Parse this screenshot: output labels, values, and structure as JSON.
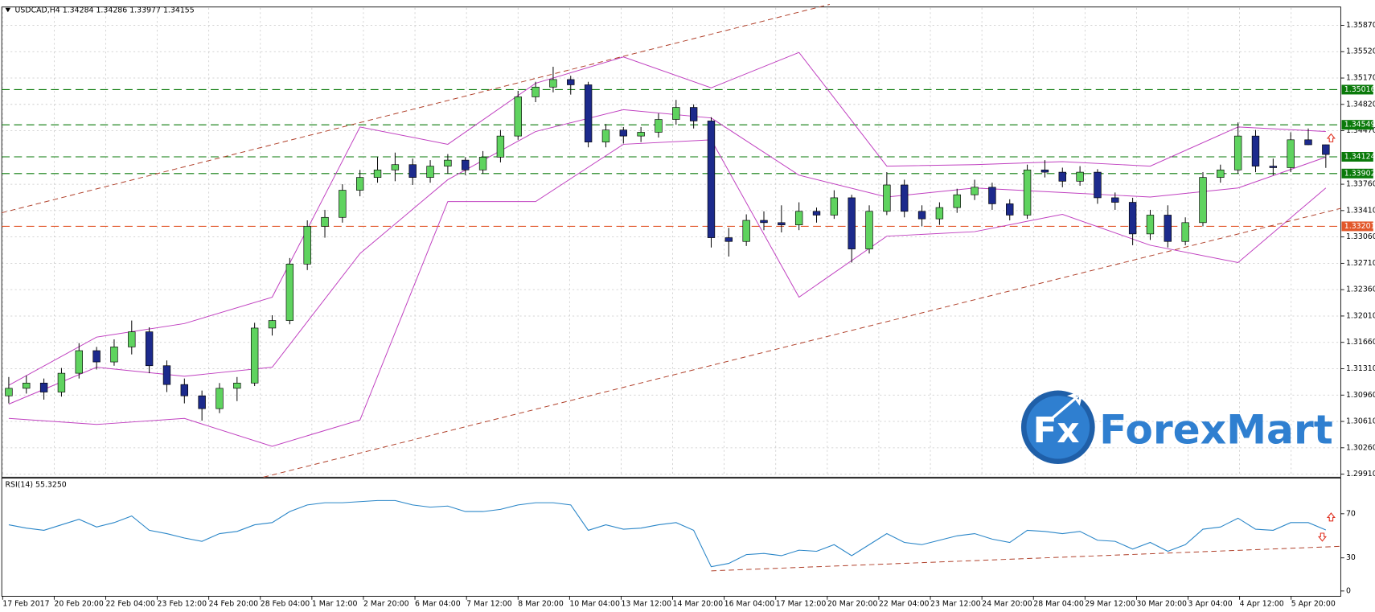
{
  "chart_data": [
    {
      "type": "candlestick",
      "title": "USDCAD,H4  1.34284 1.34286 1.33977 1.34155",
      "ylim": [
        1.2987,
        1.3609
      ],
      "yticks": [
        {
          "value": 1.3587,
          "label": "1.35870"
        },
        {
          "value": 1.3552,
          "label": "1.35520"
        },
        {
          "value": 1.3517,
          "label": "1.35170"
        },
        {
          "value": 1.3482,
          "label": "1.34820"
        },
        {
          "value": 1.3447,
          "label": "1.34470"
        },
        {
          "value": 1.3376,
          "label": "1.33760"
        },
        {
          "value": 1.3341,
          "label": "1.33410"
        },
        {
          "value": 1.3306,
          "label": "1.33060"
        },
        {
          "value": 1.3271,
          "label": "1.32710"
        },
        {
          "value": 1.3236,
          "label": "1.32360"
        },
        {
          "value": 1.3201,
          "label": "1.32010"
        },
        {
          "value": 1.3166,
          "label": "1.31660"
        },
        {
          "value": 1.3131,
          "label": "1.31310"
        },
        {
          "value": 1.3096,
          "label": "1.30960"
        },
        {
          "value": 1.3061,
          "label": "1.30610"
        },
        {
          "value": 1.3026,
          "label": "1.30260"
        },
        {
          "value": 1.2991,
          "label": "1.29910"
        }
      ],
      "grid": true,
      "up_color": "#5fd35f",
      "down_color": "#1c2a8c",
      "candles": [
        [
          1.3095,
          1.312,
          1.3085,
          1.3105
        ],
        [
          1.3105,
          1.3122,
          1.3098,
          1.3112
        ],
        [
          1.3112,
          1.3118,
          1.309,
          1.31
        ],
        [
          1.31,
          1.3132,
          1.3094,
          1.3125
        ],
        [
          1.3125,
          1.3165,
          1.3118,
          1.3155
        ],
        [
          1.3155,
          1.316,
          1.313,
          1.314
        ],
        [
          1.314,
          1.317,
          1.3135,
          1.316
        ],
        [
          1.316,
          1.3195,
          1.315,
          1.318
        ],
        [
          1.318,
          1.3186,
          1.3125,
          1.3135
        ],
        [
          1.3135,
          1.3142,
          1.31,
          1.311
        ],
        [
          1.311,
          1.3118,
          1.3085,
          1.3095
        ],
        [
          1.3095,
          1.3102,
          1.3062,
          1.3078
        ],
        [
          1.3078,
          1.3112,
          1.3072,
          1.3105
        ],
        [
          1.3105,
          1.312,
          1.3088,
          1.3112
        ],
        [
          1.3112,
          1.3192,
          1.3108,
          1.3185
        ],
        [
          1.3185,
          1.3202,
          1.3175,
          1.3195
        ],
        [
          1.3195,
          1.3278,
          1.319,
          1.327
        ],
        [
          1.327,
          1.3328,
          1.3262,
          1.332
        ],
        [
          1.332,
          1.3342,
          1.3305,
          1.3332
        ],
        [
          1.3332,
          1.3376,
          1.3325,
          1.3368
        ],
        [
          1.3368,
          1.3395,
          1.336,
          1.3385
        ],
        [
          1.3385,
          1.3412,
          1.3378,
          1.3395
        ],
        [
          1.3395,
          1.3418,
          1.338,
          1.3402
        ],
        [
          1.3402,
          1.341,
          1.3375,
          1.3385
        ],
        [
          1.3385,
          1.3408,
          1.3378,
          1.34
        ],
        [
          1.34,
          1.3416,
          1.339,
          1.3408
        ],
        [
          1.3408,
          1.3412,
          1.3388,
          1.3395
        ],
        [
          1.3395,
          1.342,
          1.339,
          1.3412
        ],
        [
          1.3412,
          1.3448,
          1.3405,
          1.344
        ],
        [
          1.344,
          1.35,
          1.3435,
          1.3492
        ],
        [
          1.3492,
          1.3512,
          1.3485,
          1.3505
        ],
        [
          1.3505,
          1.3532,
          1.3498,
          1.3515
        ],
        [
          1.3515,
          1.352,
          1.3495,
          1.3508
        ],
        [
          1.3508,
          1.3512,
          1.3425,
          1.3432
        ],
        [
          1.3432,
          1.3456,
          1.3425,
          1.3448
        ],
        [
          1.3448,
          1.3452,
          1.343,
          1.344
        ],
        [
          1.344,
          1.3452,
          1.3432,
          1.3445
        ],
        [
          1.3445,
          1.347,
          1.3438,
          1.3462
        ],
        [
          1.3462,
          1.3488,
          1.3455,
          1.3478
        ],
        [
          1.3478,
          1.3482,
          1.345,
          1.346
        ],
        [
          1.346,
          1.3465,
          1.3292,
          1.3305
        ],
        [
          1.3305,
          1.3318,
          1.328,
          1.33
        ],
        [
          1.33,
          1.3336,
          1.3294,
          1.3328
        ],
        [
          1.3328,
          1.334,
          1.3315,
          1.3325
        ],
        [
          1.3325,
          1.3348,
          1.3312,
          1.3322
        ],
        [
          1.3322,
          1.3352,
          1.3315,
          1.334
        ],
        [
          1.334,
          1.3345,
          1.3325,
          1.3335
        ],
        [
          1.3335,
          1.3368,
          1.333,
          1.3358
        ],
        [
          1.3358,
          1.3362,
          1.3272,
          1.329
        ],
        [
          1.329,
          1.3348,
          1.3284,
          1.334
        ],
        [
          1.334,
          1.3392,
          1.3335,
          1.3375
        ],
        [
          1.3375,
          1.3382,
          1.3332,
          1.334
        ],
        [
          1.334,
          1.3348,
          1.332,
          1.333
        ],
        [
          1.333,
          1.3352,
          1.3322,
          1.3345
        ],
        [
          1.3345,
          1.337,
          1.3338,
          1.3362
        ],
        [
          1.3362,
          1.3382,
          1.3355,
          1.3372
        ],
        [
          1.3372,
          1.3378,
          1.3342,
          1.335
        ],
        [
          1.335,
          1.3356,
          1.3328,
          1.3335
        ],
        [
          1.3335,
          1.3402,
          1.333,
          1.3395
        ],
        [
          1.3395,
          1.3408,
          1.3385,
          1.3392
        ],
        [
          1.3392,
          1.3398,
          1.3372,
          1.338
        ],
        [
          1.338,
          1.34,
          1.3374,
          1.3392
        ],
        [
          1.3392,
          1.3396,
          1.335,
          1.3358
        ],
        [
          1.3358,
          1.3365,
          1.3342,
          1.3352
        ],
        [
          1.3352,
          1.3358,
          1.3295,
          1.331
        ],
        [
          1.331,
          1.3342,
          1.3302,
          1.3335
        ],
        [
          1.3335,
          1.3348,
          1.3292,
          1.33
        ],
        [
          1.33,
          1.3332,
          1.3295,
          1.3325
        ],
        [
          1.3325,
          1.3392,
          1.332,
          1.3385
        ],
        [
          1.3385,
          1.3402,
          1.3378,
          1.3395
        ],
        [
          1.3395,
          1.3458,
          1.339,
          1.344
        ],
        [
          1.344,
          1.3448,
          1.3392,
          1.34
        ],
        [
          1.34,
          1.341,
          1.3388,
          1.3398
        ],
        [
          1.3398,
          1.3445,
          1.3392,
          1.3435
        ],
        [
          1.3435,
          1.345,
          1.3428,
          1.34284
        ],
        [
          1.34284,
          1.34286,
          1.33977,
          1.34155
        ]
      ],
      "bands": {
        "color": "#c040c0",
        "x": [
          0,
          5,
          10,
          15,
          20,
          25,
          30,
          35,
          40,
          45,
          50,
          55,
          60,
          65,
          70,
          75
        ],
        "upper": [
          1.3109,
          1.3173,
          1.3191,
          1.3226,
          1.3452,
          1.3429,
          1.351,
          1.3545,
          1.3504,
          1.3551,
          1.34,
          1.3402,
          1.3406,
          1.34,
          1.3452,
          1.3446
        ],
        "middle": [
          1.3084,
          1.3133,
          1.3121,
          1.3133,
          1.3284,
          1.3382,
          1.3446,
          1.3475,
          1.3464,
          1.3388,
          1.3359,
          1.3371,
          1.3365,
          1.3359,
          1.3371,
          1.3412
        ],
        "lower": [
          1.3065,
          1.3057,
          1.3065,
          1.3028,
          1.3063,
          1.3353,
          1.3353,
          1.3429,
          1.3435,
          1.3226,
          1.3307,
          1.3313,
          1.3336,
          1.3295,
          1.3272,
          1.3371
        ]
      },
      "levels": [
        {
          "value": 1.35016,
          "color": "#0a7a0a"
        },
        {
          "value": 1.34549,
          "color": "#0a7a0a"
        },
        {
          "value": 1.34124,
          "color": "#0a7a0a"
        },
        {
          "value": 1.33902,
          "color": "#0a7a0a"
        },
        {
          "value": 1.33201,
          "color": "#e2572a"
        }
      ],
      "x_labels": [
        "17 Feb 2017",
        "20 Feb 20:00",
        "22 Feb 04:00",
        "23 Feb 12:00",
        "24 Feb 20:00",
        "28 Feb 04:00",
        "1 Mar 12:00",
        "2 Mar 20:00",
        "6 Mar 04:00",
        "7 Mar 12:00",
        "8 Mar 20:00",
        "10 Mar 04:00",
        "13 Mar 12:00",
        "14 Mar 20:00",
        "16 Mar 04:00",
        "17 Mar 12:00",
        "20 Mar 20:00",
        "22 Mar 04:00",
        "23 Mar 12:00",
        "24 Mar 20:00",
        "28 Mar 04:00",
        "29 Mar 12:00",
        "30 Mar 20:00",
        "3 Apr 04:00",
        "4 Apr 12:00",
        "5 Apr 20:00"
      ]
    },
    {
      "type": "line",
      "title": "RSI(14) 55.3250",
      "ylim": [
        0,
        100
      ],
      "yticks": [
        0,
        30,
        70
      ],
      "color": "#2a86c8",
      "values": [
        60,
        57,
        55,
        60,
        65,
        58,
        62,
        68,
        55,
        52,
        48,
        45,
        52,
        54,
        60,
        62,
        72,
        78,
        80,
        80,
        81,
        82,
        82,
        78,
        76,
        77,
        72,
        72,
        74,
        78,
        80,
        80,
        78,
        55,
        60,
        56,
        57,
        60,
        62,
        55,
        22,
        25,
        33,
        34,
        32,
        37,
        36,
        42,
        32,
        42,
        52,
        44,
        42,
        46,
        50,
        52,
        47,
        44,
        55,
        54,
        52,
        54,
        46,
        45,
        38,
        44,
        36,
        42,
        56,
        58,
        66,
        56,
        55,
        62,
        62,
        55.325
      ]
    }
  ],
  "logo": {
    "icon": "Fx",
    "text": "ForexMart"
  }
}
